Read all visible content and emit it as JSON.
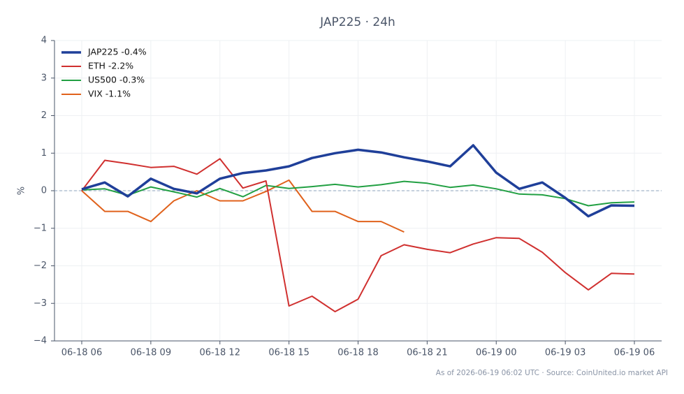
{
  "chart_data": {
    "type": "line",
    "title": "JAP225 · 24h",
    "ylabel": "%",
    "footnote": "As of 2026-06-19 06:02 UTC · Source: CoinUnited.io market API",
    "x": [
      "06-18 06",
      "06-18 07",
      "06-18 08",
      "06-18 09",
      "06-18 10",
      "06-18 11",
      "06-18 12",
      "06-18 13",
      "06-18 14",
      "06-18 15",
      "06-18 16",
      "06-18 17",
      "06-18 18",
      "06-18 19",
      "06-18 20",
      "06-18 21",
      "06-18 22",
      "06-18 23",
      "06-19 00",
      "06-19 01",
      "06-19 02",
      "06-19 03",
      "06-19 04",
      "06-19 05",
      "06-19 06"
    ],
    "xticks": [
      "06-18 06",
      "06-18 09",
      "06-18 12",
      "06-18 15",
      "06-18 18",
      "06-18 21",
      "06-19 00",
      "06-19 03",
      "06-19 06"
    ],
    "ylim": [
      -4,
      4
    ],
    "yticks": [
      {
        "value": -4,
        "label": "−4"
      },
      {
        "value": -3,
        "label": "−3"
      },
      {
        "value": -2,
        "label": "−2"
      },
      {
        "value": -1,
        "label": "−1"
      },
      0,
      1,
      2,
      3,
      4
    ],
    "grid": true,
    "zero_line": true,
    "legend": "upper left",
    "series": [
      {
        "name": "JAP225 -0.4%",
        "color": "#1f3f99",
        "line_width": 3.5,
        "values": [
          0.04,
          0.22,
          -0.15,
          0.32,
          0.05,
          -0.07,
          0.32,
          0.47,
          0.54,
          0.65,
          0.87,
          1.0,
          1.09,
          1.02,
          0.89,
          0.78,
          0.65,
          1.21,
          0.48,
          0.05,
          0.22,
          -0.19,
          -0.68,
          -0.39,
          -0.4
        ]
      },
      {
        "name": "ETH -2.2%",
        "color": "#d0302f",
        "line_width": 2,
        "values": [
          0,
          0.81,
          0.72,
          0.62,
          0.65,
          0.44,
          0.85,
          0.07,
          0.26,
          -3.07,
          -2.81,
          -3.22,
          -2.89,
          -1.73,
          -1.44,
          -1.56,
          -1.65,
          -1.42,
          -1.25,
          -1.27,
          -1.64,
          -2.18,
          -2.64,
          -2.2,
          -2.22
        ]
      },
      {
        "name": "US500 -0.3%",
        "color": "#22a043",
        "line_width": 2,
        "values": [
          0.02,
          0.05,
          -0.12,
          0.1,
          -0.03,
          -0.17,
          0.06,
          -0.16,
          0.14,
          0.06,
          0.11,
          0.17,
          0.1,
          0.16,
          0.25,
          0.2,
          0.09,
          0.15,
          0.05,
          -0.09,
          -0.11,
          -0.21,
          -0.4,
          -0.32,
          -0.3
        ]
      },
      {
        "name": "VIX -1.1%",
        "color": "#e0621c",
        "line_width": 2,
        "values": [
          0,
          -0.55,
          -0.55,
          -0.82,
          -0.27,
          0.0,
          -0.27,
          -0.27,
          -0.02,
          0.28,
          -0.55,
          -0.55,
          -0.82,
          -0.82,
          -1.1,
          null,
          null,
          null,
          null,
          null,
          null,
          null,
          null,
          null,
          null
        ]
      }
    ]
  }
}
